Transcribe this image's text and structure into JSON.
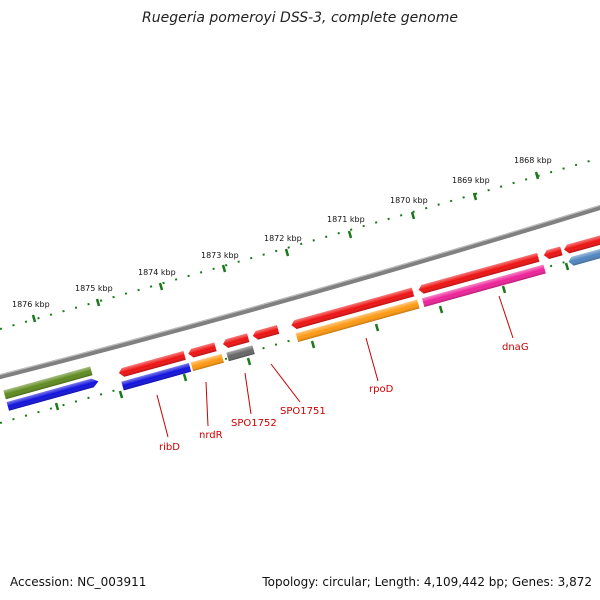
{
  "title": "Ruegeria pomeroyi DSS-3, complete genome",
  "footer": {
    "accession": "Accession: NC_003911",
    "summary": "Topology: circular; Length: 4,109,442 bp; Genes: 3,872"
  },
  "scale_labels": [
    "1868 kbp",
    "1869 kbp",
    "1870 kbp",
    "1871 kbp",
    "1872 kbp",
    "1873 kbp",
    "1874 kbp",
    "1875 kbp",
    "1876 kbp"
  ],
  "gene_labels": [
    "dnaG",
    "rpoD",
    "SPO1751",
    "SPO1752",
    "nrdR",
    "ribD"
  ],
  "colors": {
    "red": "#ee1111",
    "blue": "#1111dd",
    "orange": "#ff9911",
    "olive": "#5e8a1e",
    "pink": "#ee2299",
    "grey": "#666666",
    "steelblue": "#4f86bf",
    "ticks": "#1a7a1a",
    "backbone": "#7a7a7a",
    "label": "#cc0000"
  }
}
